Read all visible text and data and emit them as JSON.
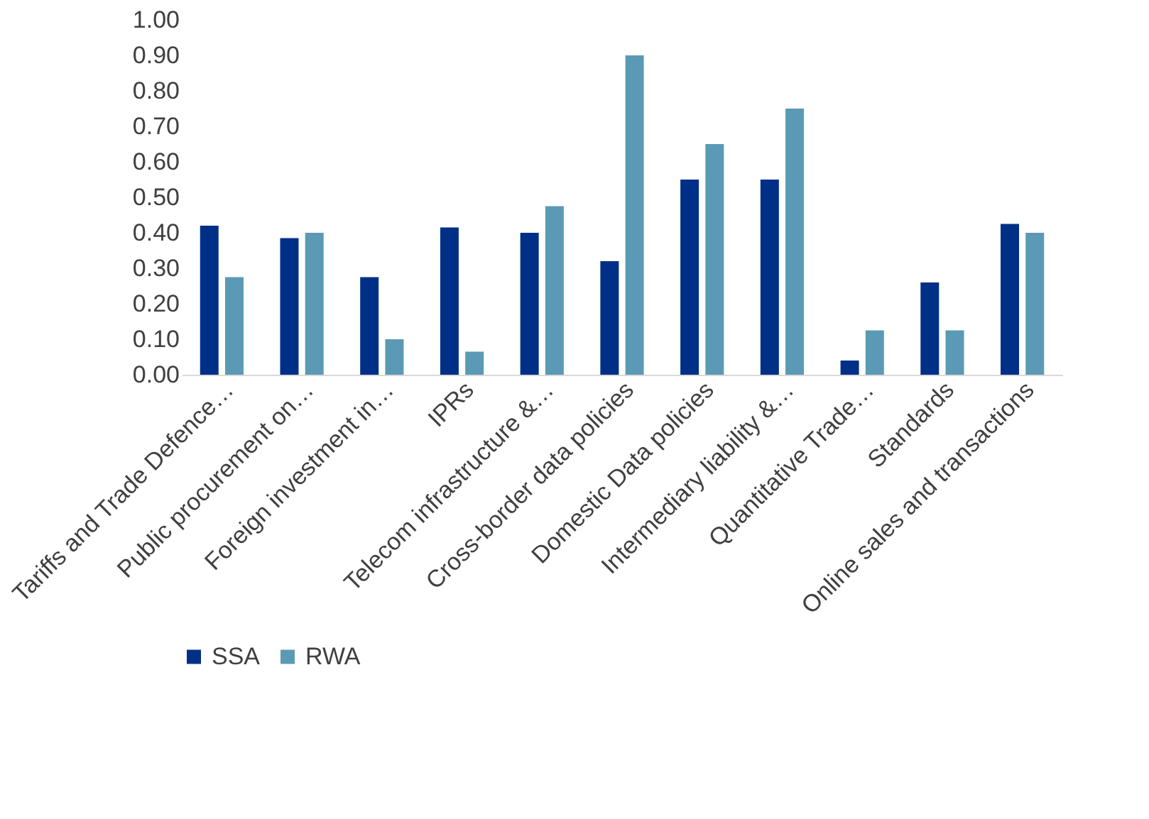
{
  "chart_data": {
    "type": "bar",
    "categories": [
      "Tariffs and Trade Defence…",
      "Public procurement on…",
      "Foreign investment in…",
      "IPRs",
      "Telecom infrastructure &…",
      "Cross-border data policies",
      "Domestic Data policies",
      "Intermediary liability &…",
      "Quantitative Trade…",
      "Standards",
      "Online sales and transactions"
    ],
    "series": [
      {
        "name": "SSA",
        "color": "#002f87",
        "values": [
          0.42,
          0.385,
          0.275,
          0.415,
          0.4,
          0.32,
          0.55,
          0.55,
          0.04,
          0.26,
          0.425
        ]
      },
      {
        "name": "RWA",
        "color": "#5b9ab5",
        "values": [
          0.275,
          0.4,
          0.1,
          0.065,
          0.475,
          0.9,
          0.65,
          0.75,
          0.125,
          0.125,
          0.4
        ]
      }
    ],
    "ylim": [
      0,
      1
    ],
    "yticks": [
      {
        "value": 0,
        "label": "0.00"
      },
      {
        "value": 0.1,
        "label": "0.10"
      },
      {
        "value": 0.2,
        "label": "0.20"
      },
      {
        "value": 0.3,
        "label": "0.30"
      },
      {
        "value": 0.4,
        "label": "0.40"
      },
      {
        "value": 0.5,
        "label": "0.50"
      },
      {
        "value": 0.6,
        "label": "0.60"
      },
      {
        "value": 0.7,
        "label": "0.70"
      },
      {
        "value": 0.8,
        "label": "0.80"
      },
      {
        "value": 0.9,
        "label": "0.90"
      },
      {
        "value": 1,
        "label": "1.00"
      }
    ],
    "grid": false,
    "legend": "bottom"
  }
}
